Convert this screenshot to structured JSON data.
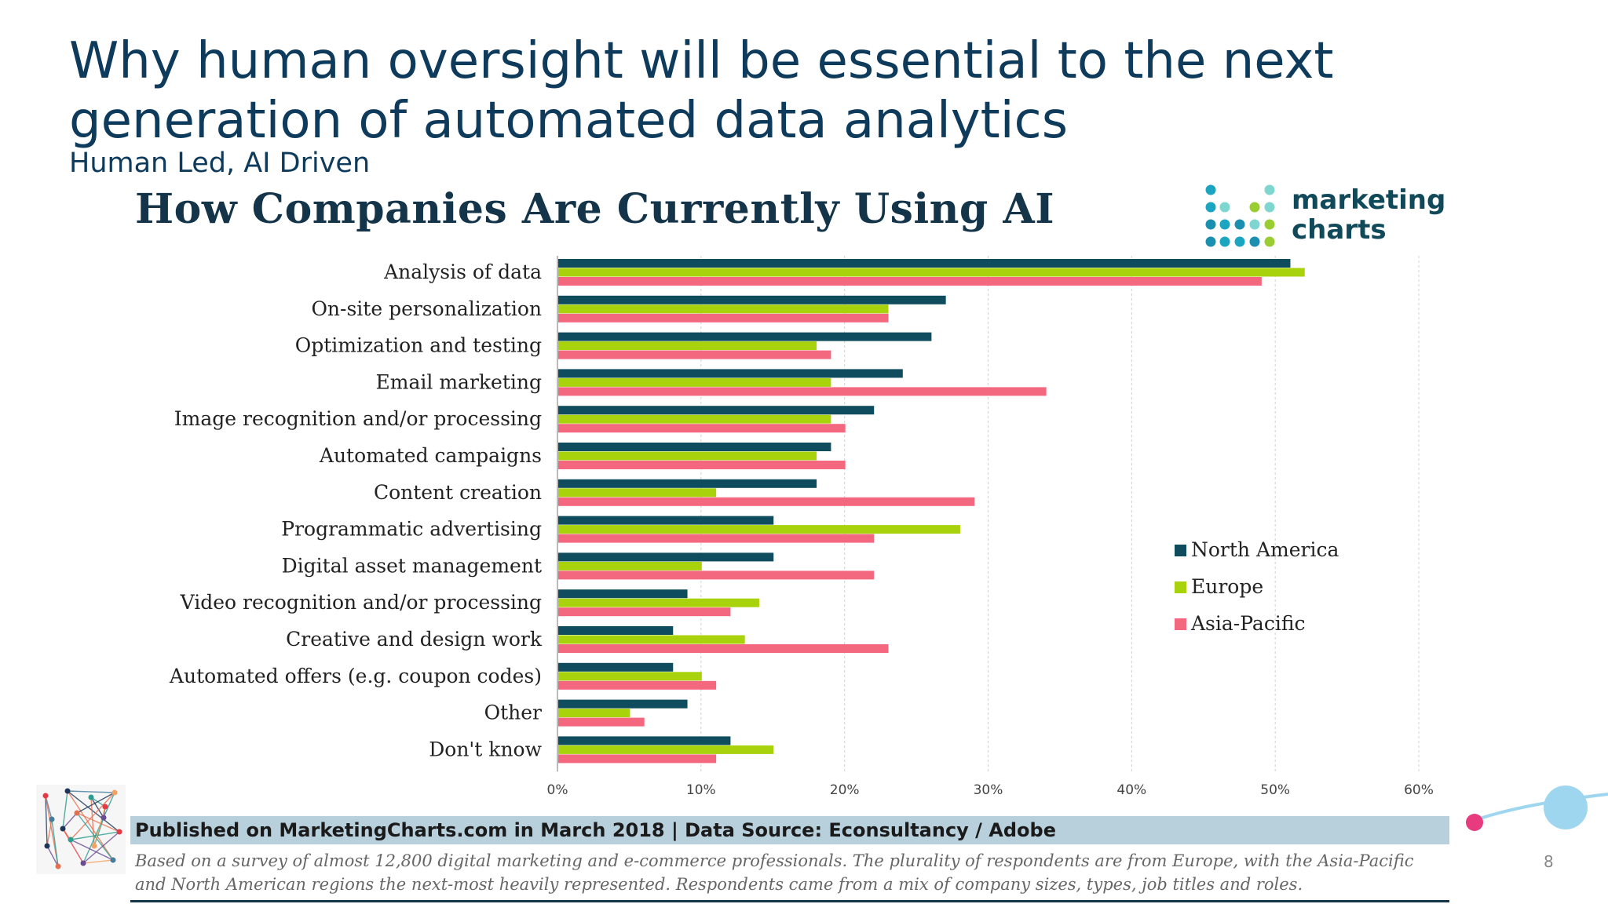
{
  "slide": {
    "title": "Why human oversight will be essential to the next generation of automated data analytics",
    "subtitle": "Human Led, AI Driven",
    "page_number": "8"
  },
  "logo": {
    "line1": "marketing",
    "line2": "charts"
  },
  "caption": {
    "header": "Published on MarketingCharts.com in March 2018 | Data Source: Econsultancy / Adobe",
    "note": "Based on a survey of almost 12,800 digital marketing and e-commerce professionals. The plurality of respondents are from Europe, with the Asia-Pacific and North American regions the next-most heavily represented. Respondents came from a mix of company sizes, types, job titles and roles."
  },
  "colors": {
    "north_america": "#0f4d5e",
    "europe": "#a8d20c",
    "asia_pacific": "#f4687f",
    "title": "#0e3a5c",
    "accent_blue": "#9fd6ef",
    "accent_pink": "#e83a7e"
  },
  "chart_data": {
    "type": "bar",
    "orientation": "horizontal",
    "title": "How Companies Are Currently Using AI",
    "categories": [
      "Analysis of data",
      "On-site personalization",
      "Optimization and testing",
      "Email marketing",
      "Image recognition and/or processing",
      "Automated campaigns",
      "Content creation",
      "Programmatic advertising",
      "Digital asset management",
      "Video recognition and/or processing",
      "Creative and design work",
      "Automated offers (e.g. coupon codes)",
      "Other",
      "Don't know"
    ],
    "series": [
      {
        "name": "North America",
        "values": [
          51,
          27,
          26,
          24,
          22,
          19,
          18,
          15,
          15,
          9,
          8,
          8,
          9,
          12
        ]
      },
      {
        "name": "Europe",
        "values": [
          52,
          23,
          18,
          19,
          19,
          18,
          11,
          28,
          10,
          14,
          13,
          10,
          5,
          15
        ]
      },
      {
        "name": "Asia-Pacific",
        "values": [
          49,
          23,
          19,
          34,
          20,
          20,
          29,
          22,
          22,
          12,
          23,
          11,
          6,
          11
        ]
      }
    ],
    "xlim": [
      0,
      60
    ],
    "xticks": [
      "0%",
      "10%",
      "20%",
      "30%",
      "40%",
      "50%",
      "60%"
    ],
    "grid": true,
    "legend_position": "right"
  }
}
